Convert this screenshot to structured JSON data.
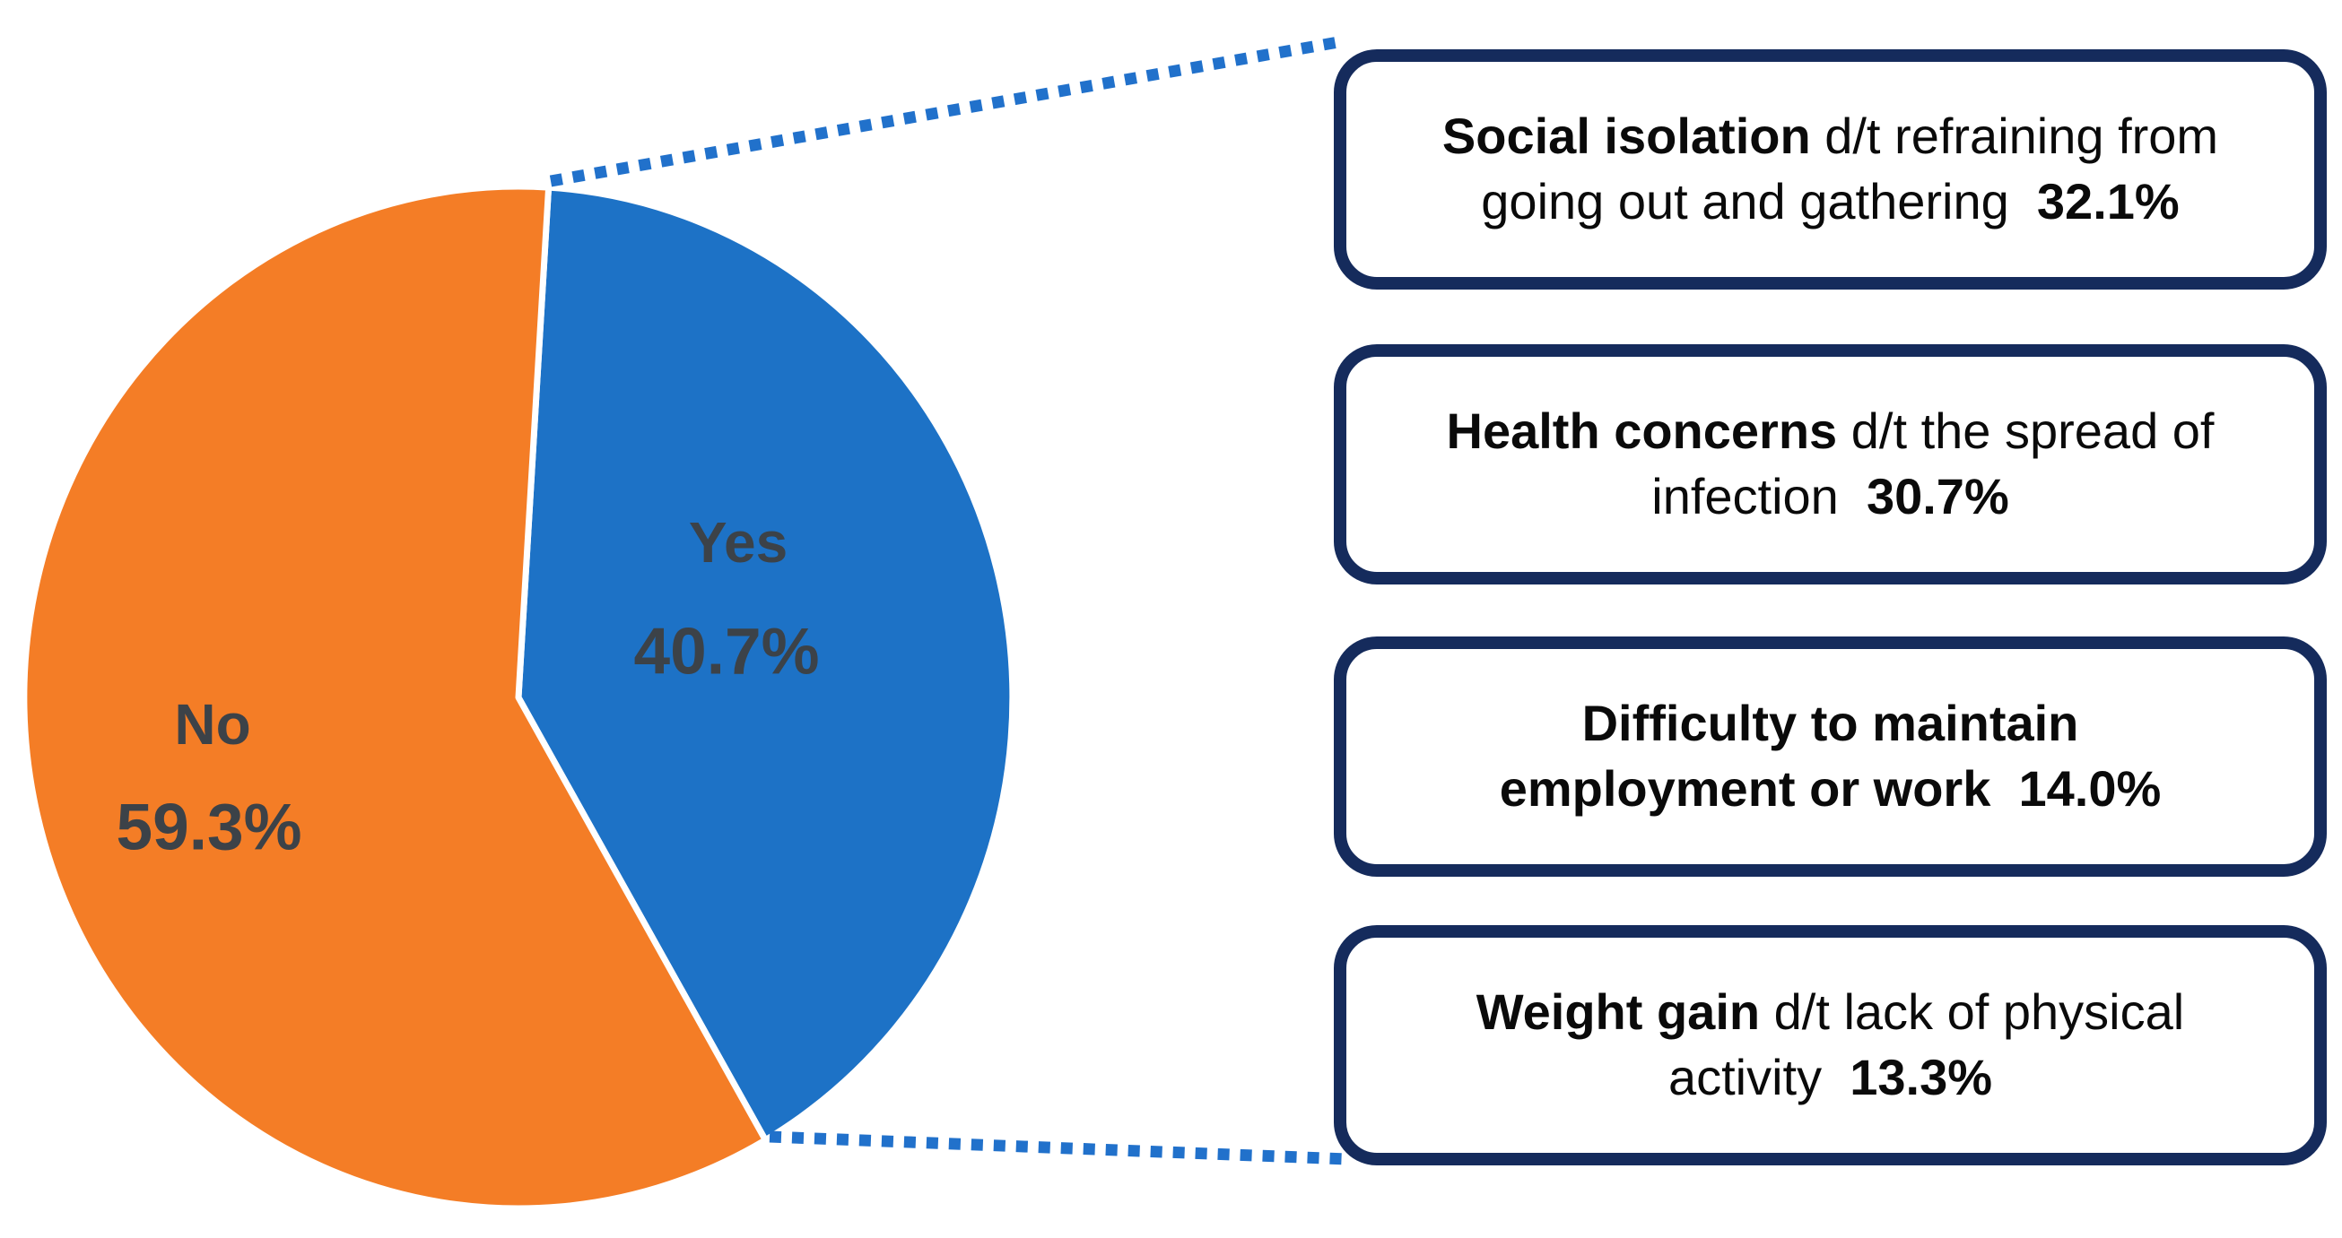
{
  "chart_data": {
    "type": "pie",
    "title": "",
    "categories": [
      "Yes",
      "No"
    ],
    "values": [
      40.7,
      59.3
    ],
    "unit": "%",
    "colors": [
      "#1d72c6",
      "#f47d26"
    ],
    "start_angle_deg": 3.5,
    "legend_position": "none",
    "slice_labels": {
      "yes": {
        "text": "Yes",
        "pct_text": "40.7%"
      },
      "no": {
        "text": "No",
        "pct_text": "59.3%"
      }
    },
    "callouts": [
      {
        "label": "Social isolation",
        "detail": "d/t refraining from going out and gathering",
        "value": 32.1,
        "pct_text": "32.1%",
        "segments": [
          {
            "t": "Social isolation",
            "b": true
          },
          {
            "t": " d/t refraining from",
            "b": false
          },
          {
            "br": true
          },
          {
            "t": "going out and gathering",
            "b": false
          },
          {
            "t": "  32.1%",
            "b": true
          }
        ]
      },
      {
        "label": "Health concerns",
        "detail": "d/t the spread of infection",
        "value": 30.7,
        "pct_text": "30.7%",
        "segments": [
          {
            "t": "Health concerns",
            "b": true
          },
          {
            "t": " d/t the spread of",
            "b": false
          },
          {
            "br": true
          },
          {
            "t": "infection",
            "b": false
          },
          {
            "t": "  30.7%",
            "b": true
          }
        ]
      },
      {
        "label": "Difficulty to maintain employment or work",
        "detail": "",
        "value": 14.0,
        "pct_text": "14.0%",
        "segments": [
          {
            "t": "Difficulty to maintain",
            "b": true
          },
          {
            "br": true
          },
          {
            "t": "employment or work  14.0%",
            "b": true
          }
        ]
      },
      {
        "label": "Weight gain",
        "detail": "d/t lack of physical activity",
        "value": 13.3,
        "pct_text": "13.3%",
        "segments": [
          {
            "t": "Weight gain",
            "b": true
          },
          {
            "t": " d/t lack of physical",
            "b": false
          },
          {
            "br": true
          },
          {
            "t": "activity",
            "b": false
          },
          {
            "t": "  13.3%",
            "b": true
          }
        ]
      }
    ],
    "styles": {
      "callout_border_color": "#152b5c",
      "connector_color": "#2171cb",
      "slice_label_color": "#3c4248",
      "callout_text_color": "#0a0a0a",
      "background_color": "#ffffff"
    }
  }
}
